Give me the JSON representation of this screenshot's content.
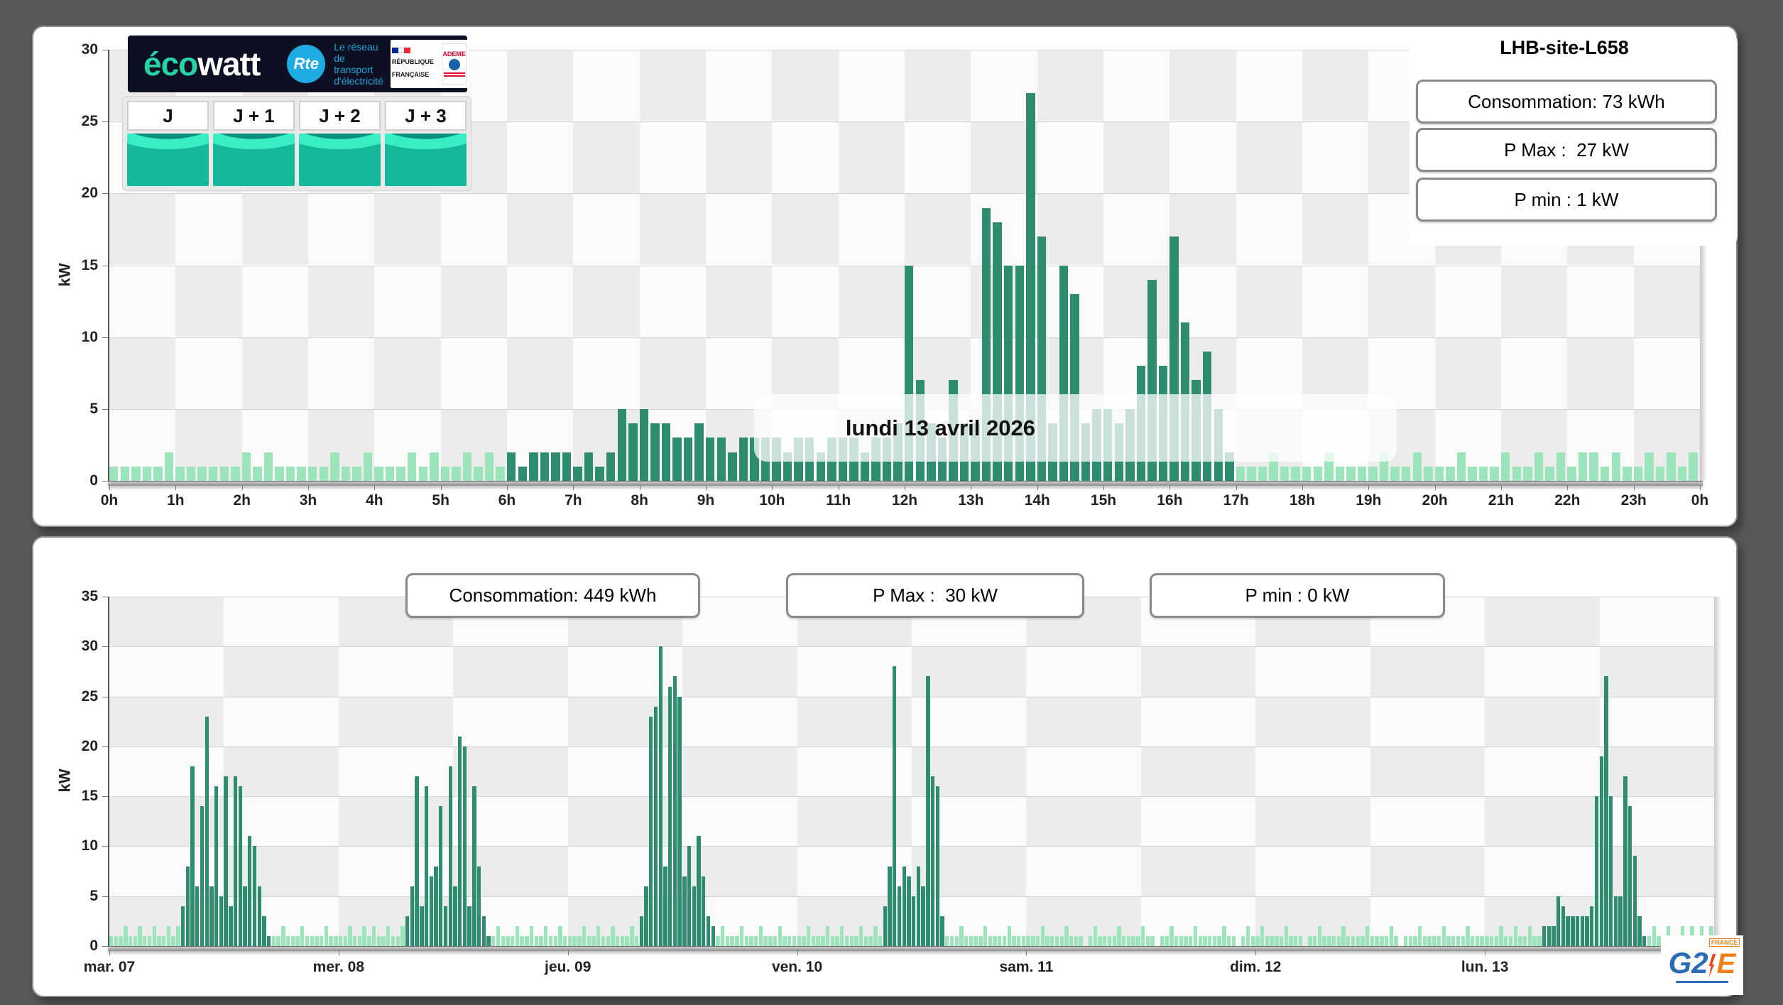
{
  "colors": {
    "background": "#595959",
    "bar_light": "#9ce4ba",
    "bar_dark": "#2f8d6f",
    "checker_gray": "#ececec",
    "checker_white": "#fbfbfb",
    "ecowatt_teal": "#27d3a4",
    "rte_blue": "#1cabe2",
    "g2e_blue": "#2a6cb5",
    "g2e_orange": "#f08019"
  },
  "branding": {
    "ecowatt_eco": "éco",
    "ecowatt_watt": "watt",
    "rte": "Rte",
    "rte_tagline": "Le réseau de transport d'électricité",
    "republique": "RÉPUBLIQUE FRANÇAISE",
    "ademe": "ADEME",
    "g2e_g2": "G2",
    "g2e_e": "E",
    "g2e_france": "FRANCE"
  },
  "forecast_tiles": {
    "labels": [
      "J",
      "J + 1",
      "J + 2",
      "J + 3"
    ]
  },
  "chart_data": [
    {
      "id": "daily",
      "type": "bar",
      "title": "LHB-site-L658",
      "date_label": "lundi 13 avril 2026",
      "stats": [
        "Consommation: 73 kWh",
        "P Max :  27 kW",
        "P min : 1 kW"
      ],
      "ylabel": "kW",
      "ylim": [
        0,
        30
      ],
      "y_ticks": [
        0,
        5,
        10,
        15,
        20,
        25,
        30
      ],
      "x_tick_labels": [
        "0h",
        "1h",
        "2h",
        "3h",
        "4h",
        "5h",
        "6h",
        "7h",
        "8h",
        "9h",
        "10h",
        "11h",
        "12h",
        "13h",
        "14h",
        "15h",
        "16h",
        "17h",
        "18h",
        "19h",
        "20h",
        "21h",
        "22h",
        "23h",
        "0h"
      ],
      "resolution_minutes": 10,
      "grid": true,
      "legend": "none",
      "values": [
        1,
        1,
        1,
        1,
        1,
        2,
        1,
        1,
        1,
        1,
        1,
        1,
        2,
        1,
        2,
        1,
        1,
        1,
        1,
        1,
        2,
        1,
        1,
        2,
        1,
        1,
        1,
        2,
        1,
        2,
        1,
        1,
        2,
        1,
        2,
        1,
        2,
        1,
        2,
        2,
        2,
        2,
        1,
        2,
        1,
        2,
        5,
        4,
        5,
        4,
        4,
        3,
        3,
        4,
        3,
        3,
        2,
        3,
        3,
        3,
        3,
        2,
        3,
        3,
        2,
        3,
        3,
        3,
        2,
        3,
        3,
        4,
        15,
        7,
        4,
        3,
        7,
        4,
        4,
        19,
        18,
        15,
        15,
        27,
        17,
        4,
        15,
        13,
        4,
        5,
        5,
        4,
        5,
        8,
        14,
        8,
        17,
        11,
        7,
        9,
        5,
        2,
        1,
        1,
        1,
        2,
        1,
        1,
        1,
        1,
        2,
        1,
        1,
        1,
        1,
        2,
        1,
        1,
        2,
        1,
        1,
        1,
        2,
        1,
        1,
        1,
        2,
        1,
        1,
        2,
        1,
        2,
        1,
        2,
        2,
        1,
        2,
        1,
        1,
        2,
        1,
        2,
        1,
        2
      ],
      "measured_ranges": [
        [
          36,
          101
        ]
      ]
    },
    {
      "id": "weekly",
      "type": "bar",
      "stats": [
        "Consommation: 449 kWh",
        "P Max :  30 kW",
        "P min : 0 kW"
      ],
      "ylabel": "kW",
      "ylim": [
        0,
        35
      ],
      "y_ticks": [
        0,
        5,
        10,
        15,
        20,
        25,
        30,
        35
      ],
      "x_tick_labels": [
        "mar. 07",
        "mer. 08",
        "jeu. 09",
        "ven. 10",
        "sam. 11",
        "dim. 12",
        "lun. 13"
      ],
      "resolution_minutes": 30,
      "grid": true,
      "legend": "none",
      "values": [
        1,
        1,
        1,
        2,
        1,
        1,
        2,
        1,
        1,
        2,
        1,
        1,
        2,
        1,
        2,
        4,
        8,
        18,
        6,
        14,
        23,
        6,
        16,
        5,
        17,
        4,
        17,
        16,
        6,
        11,
        10,
        6,
        3,
        1,
        1,
        1,
        2,
        1,
        1,
        1,
        2,
        1,
        1,
        1,
        1,
        2,
        1,
        1,
        1,
        1,
        2,
        1,
        1,
        2,
        1,
        2,
        1,
        1,
        2,
        1,
        1,
        2,
        3,
        6,
        17,
        4,
        16,
        7,
        8,
        14,
        4,
        18,
        6,
        21,
        20,
        4,
        16,
        8,
        3,
        1,
        1,
        2,
        1,
        1,
        1,
        2,
        1,
        1,
        2,
        1,
        1,
        2,
        1,
        1,
        2,
        1,
        1,
        1,
        1,
        2,
        1,
        1,
        2,
        1,
        1,
        2,
        1,
        1,
        1,
        2,
        1,
        3,
        6,
        23,
        24,
        30,
        8,
        26,
        27,
        25,
        7,
        10,
        6,
        11,
        7,
        3,
        2,
        1,
        2,
        1,
        1,
        1,
        2,
        1,
        1,
        1,
        2,
        1,
        1,
        1,
        2,
        1,
        1,
        1,
        1,
        1,
        2,
        1,
        1,
        1,
        2,
        1,
        1,
        2,
        1,
        1,
        1,
        2,
        1,
        1,
        2,
        1,
        4,
        8,
        28,
        6,
        8,
        7,
        5,
        8,
        6,
        27,
        17,
        16,
        3,
        1,
        1,
        1,
        2,
        1,
        1,
        1,
        1,
        2,
        1,
        1,
        1,
        1,
        2,
        1,
        1,
        1,
        1,
        1,
        1,
        2,
        1,
        1,
        1,
        1,
        2,
        1,
        1,
        1,
        0,
        1,
        2,
        1,
        1,
        1,
        1,
        2,
        1,
        1,
        1,
        1,
        2,
        1,
        1,
        0,
        1,
        1,
        2,
        1,
        1,
        1,
        1,
        2,
        1,
        1,
        1,
        1,
        1,
        2,
        1,
        1,
        0,
        1,
        2,
        1,
        1,
        2,
        1,
        1,
        1,
        1,
        2,
        1,
        1,
        1,
        0,
        1,
        1,
        2,
        1,
        1,
        1,
        1,
        2,
        1,
        1,
        1,
        1,
        2,
        1,
        1,
        1,
        1,
        2,
        1,
        0,
        1,
        1,
        1,
        2,
        1,
        1,
        1,
        1,
        2,
        1,
        1,
        1,
        1,
        2,
        1,
        1,
        1,
        1,
        1,
        1,
        2,
        1,
        1,
        2,
        1,
        1,
        2,
        1,
        1,
        2,
        2,
        2,
        5,
        4,
        3,
        3,
        3,
        3,
        3,
        4,
        15,
        19,
        27,
        15,
        5,
        5,
        17,
        14,
        9,
        3,
        1,
        1,
        2,
        1,
        1,
        2,
        1,
        1,
        2,
        1,
        2,
        1,
        2,
        1,
        2
      ],
      "measured_ranges": [
        [
          15,
          33
        ],
        [
          62,
          79
        ],
        [
          111,
          126
        ],
        [
          162,
          174
        ],
        [
          300,
          321
        ]
      ]
    }
  ]
}
